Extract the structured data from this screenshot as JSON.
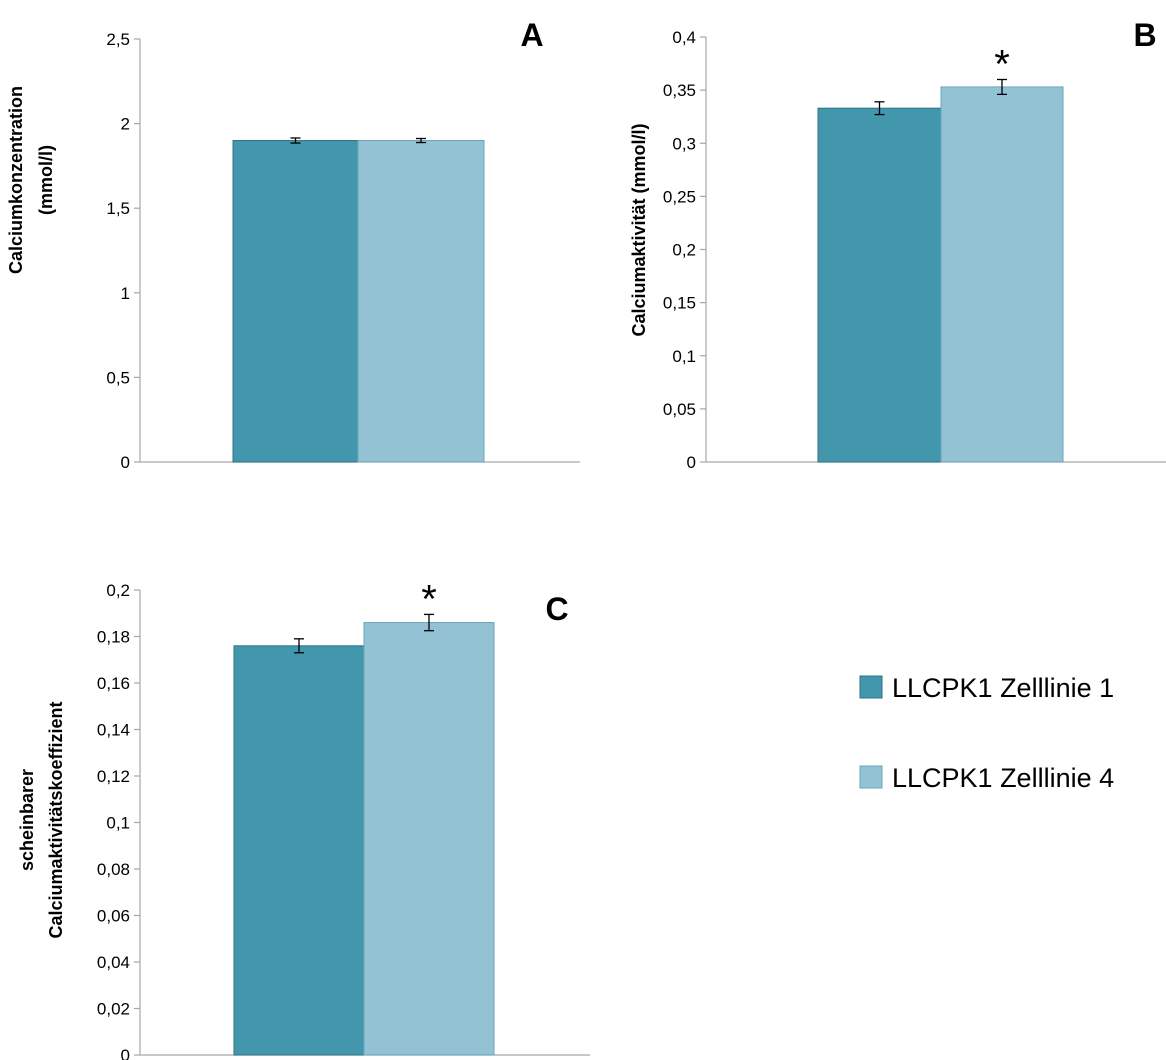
{
  "colors": {
    "series1": "#4297AD",
    "series2": "#93C2D4",
    "series1_edge": "#2E7385",
    "series2_edge": "#6BA5BA",
    "axis": "#A6A6A6"
  },
  "legend": {
    "items": [
      "LLCPK1 Zelllinie 1",
      "LLCPK1 Zelllinie 4"
    ],
    "placement": "right"
  },
  "chart_data": [
    {
      "type": "bar",
      "panel_label": "A",
      "ylabel_lines": [
        "Calciumkonzentration",
        "(mmol/l)"
      ],
      "ylim": [
        0,
        2.5
      ],
      "ticks": [
        "0",
        "0,5",
        "1",
        "1,5",
        "2",
        "2,5"
      ],
      "tick_values": [
        0,
        0.5,
        1,
        1.5,
        2,
        2.5
      ],
      "series": [
        {
          "name": "LLCPK1 Zelllinie 1",
          "value": 1.9,
          "error": 0.015
        },
        {
          "name": "LLCPK1 Zelllinie 4",
          "value": 1.9,
          "error": 0.012
        }
      ],
      "significance": []
    },
    {
      "type": "bar",
      "panel_label": "B",
      "ylabel_lines": [
        "Calciumaktivität (mmol/l)"
      ],
      "ylim": [
        0,
        0.4
      ],
      "ticks": [
        "0",
        "0,05",
        "0,1",
        "0,15",
        "0,2",
        "0,25",
        "0,3",
        "0,35",
        "0,4"
      ],
      "tick_values": [
        0,
        0.05,
        0.1,
        0.15,
        0.2,
        0.25,
        0.3,
        0.35,
        0.4
      ],
      "series": [
        {
          "name": "LLCPK1 Zelllinie 1",
          "value": 0.333,
          "error": 0.006
        },
        {
          "name": "LLCPK1 Zelllinie 4",
          "value": 0.353,
          "error": 0.007
        }
      ],
      "significance": [
        "",
        "*"
      ]
    },
    {
      "type": "bar",
      "panel_label": "C",
      "ylabel_lines": [
        "scheinbarer",
        "Calciumaktivitätskoeffizient"
      ],
      "ylim": [
        0,
        0.2
      ],
      "ticks": [
        "0",
        "0,02",
        "0,04",
        "0,06",
        "0,08",
        "0,1",
        "0,12",
        "0,14",
        "0,16",
        "0,18",
        "0,2"
      ],
      "tick_values": [
        0,
        0.02,
        0.04,
        0.06,
        0.08,
        0.1,
        0.12,
        0.14,
        0.16,
        0.18,
        0.2
      ],
      "series": [
        {
          "name": "LLCPK1 Zelllinie 1",
          "value": 0.176,
          "error": 0.003
        },
        {
          "name": "LLCPK1 Zelllinie 4",
          "value": 0.186,
          "error": 0.0035
        }
      ],
      "significance": [
        "",
        "*"
      ]
    }
  ]
}
